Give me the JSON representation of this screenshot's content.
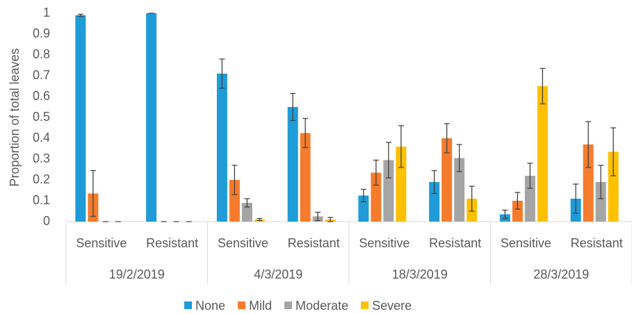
{
  "chart_data": {
    "type": "bar",
    "y_label": "Proportion of total leaves",
    "categories": [
      "Sensitive",
      "Resistant",
      "Sensitive",
      "Resistant",
      "Sensitive",
      "Resistant",
      "Sensitive",
      "Resistant"
    ],
    "groups": [
      "19/2/2019",
      "4/3/2019",
      "18/3/2019",
      "28/3/2019"
    ],
    "series": [
      {
        "name": "None",
        "color": "#1f9bd7",
        "values": [
          0.99,
          1,
          0.71,
          0.55,
          0.125,
          0.19,
          0.035,
          0.11
        ],
        "errors": [
          0.005,
          0,
          0.07,
          0.065,
          0.03,
          0.055,
          0.02,
          0.07
        ]
      },
      {
        "name": "Mild",
        "color": "#f57c2c",
        "values": [
          0.135,
          0,
          0.2,
          0.425,
          0.235,
          0.4,
          0.1,
          0.37
        ],
        "errors": [
          0.11,
          0,
          0.07,
          0.07,
          0.06,
          0.07,
          0.04,
          0.11
        ]
      },
      {
        "name": "Moderate",
        "color": "#a5a5a5",
        "values": [
          0,
          0,
          0.09,
          0.025,
          0.295,
          0.305,
          0.22,
          0.19
        ],
        "errors": [
          0,
          0,
          0.02,
          0.02,
          0.085,
          0.065,
          0.06,
          0.08
        ]
      },
      {
        "name": "Severe",
        "color": "#ffc000",
        "values": [
          0,
          0,
          0.01,
          0.01,
          0.36,
          0.11,
          0.65,
          0.335
        ],
        "errors": [
          0,
          0,
          0.005,
          0.01,
          0.1,
          0.06,
          0.085,
          0.115
        ]
      }
    ],
    "ylim": [
      0,
      1
    ],
    "yticks": [
      0,
      0.1,
      0.2,
      0.3,
      0.4,
      0.5,
      0.6,
      0.7,
      0.8,
      0.9,
      1
    ],
    "grid": false
  }
}
